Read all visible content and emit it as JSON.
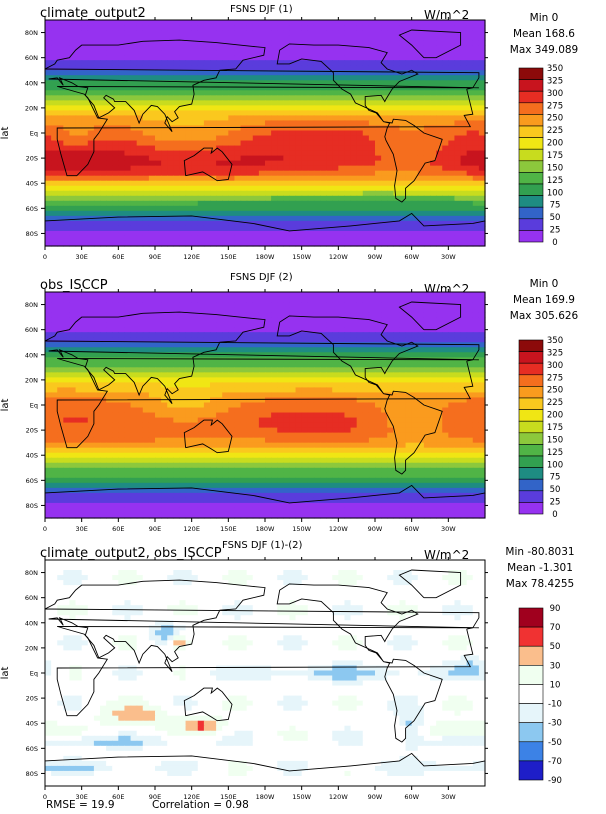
{
  "chart_data": [
    {
      "type": "heatmap",
      "title": "FSNS DJF (1)",
      "case_label": "climate_output2",
      "units": "W/m^2",
      "ylabel": "lat",
      "stats": {
        "min": "Min 0",
        "mean": "Mean 168.6",
        "max": "Max 349.089"
      },
      "x_ticks": [
        "0",
        "30E",
        "60E",
        "90E",
        "120E",
        "150E",
        "180W",
        "150W",
        "120W",
        "90W",
        "60W",
        "30W"
      ],
      "y_ticks": [
        "80N",
        "60N",
        "40N",
        "20N",
        "Eq",
        "20S",
        "40S",
        "60S",
        "80S"
      ],
      "colorbar_levels": [
        "350",
        "325",
        "300",
        "275",
        "250",
        "225",
        "200",
        "175",
        "150",
        "125",
        "100",
        "75",
        "50",
        "25",
        "0"
      ],
      "colorbar_colors": [
        "#8c0a0a",
        "#c8141e",
        "#e62d23",
        "#f56e1e",
        "#fa9b1e",
        "#fac81e",
        "#f0e614",
        "#c8dc1e",
        "#8cc83c",
        "#50b446",
        "#32a050",
        "#1e8c82",
        "#3264c8",
        "#5a3cdc",
        "#9632f0"
      ],
      "field": "FSNS_model"
    },
    {
      "type": "heatmap",
      "title": "FSNS DJF (2)",
      "case_label": "obs_ISCCP",
      "units": "W/m^2",
      "ylabel": "lat",
      "stats": {
        "min": "Min 0",
        "mean": "Mean 169.9",
        "max": "Max 305.626"
      },
      "x_ticks": [
        "0",
        "30E",
        "60E",
        "90E",
        "120E",
        "150E",
        "180W",
        "150W",
        "120W",
        "90W",
        "60W",
        "30W"
      ],
      "y_ticks": [
        "80N",
        "60N",
        "40N",
        "20N",
        "Eq",
        "20S",
        "40S",
        "60S",
        "80S"
      ],
      "colorbar_levels": [
        "350",
        "325",
        "300",
        "275",
        "250",
        "225",
        "200",
        "175",
        "150",
        "125",
        "100",
        "75",
        "50",
        "25",
        "0"
      ],
      "colorbar_colors": [
        "#8c0a0a",
        "#c8141e",
        "#e62d23",
        "#f56e1e",
        "#fa9b1e",
        "#fac81e",
        "#f0e614",
        "#c8dc1e",
        "#8cc83c",
        "#50b446",
        "#32a050",
        "#1e8c82",
        "#3264c8",
        "#5a3cdc",
        "#9632f0"
      ],
      "field": "FSNS_obs"
    },
    {
      "type": "heatmap",
      "title": "FSNS DJF (1)-(2)",
      "case_label": "climate_output2, obs_ISCCP",
      "units": "W/m^2",
      "ylabel": "lat",
      "stats": {
        "min": "Min -80.8031",
        "mean": "Mean -1.301",
        "max": "Max 78.4255"
      },
      "x_ticks": [
        "0",
        "30E",
        "60E",
        "90E",
        "120E",
        "150E",
        "180W",
        "150W",
        "120W",
        "90W",
        "60W",
        "30W"
      ],
      "y_ticks": [
        "80N",
        "60N",
        "40N",
        "20N",
        "Eq",
        "20S",
        "40S",
        "60S",
        "80S"
      ],
      "colorbar_levels": [
        "90",
        "70",
        "50",
        "30",
        "10",
        "-10",
        "-30",
        "-50",
        "-70",
        "-90"
      ],
      "colorbar_colors": [
        "#a0001e",
        "#f03232",
        "#fabe8c",
        "#f0fff0",
        "#ffffff",
        "#e6f5fa",
        "#8cc8f0",
        "#3c82e6",
        "#1e1ec8"
      ],
      "rmse": "RMSE = 19.9",
      "correlation": "Correlation = 0.98",
      "field": "FSNS_diff"
    }
  ]
}
